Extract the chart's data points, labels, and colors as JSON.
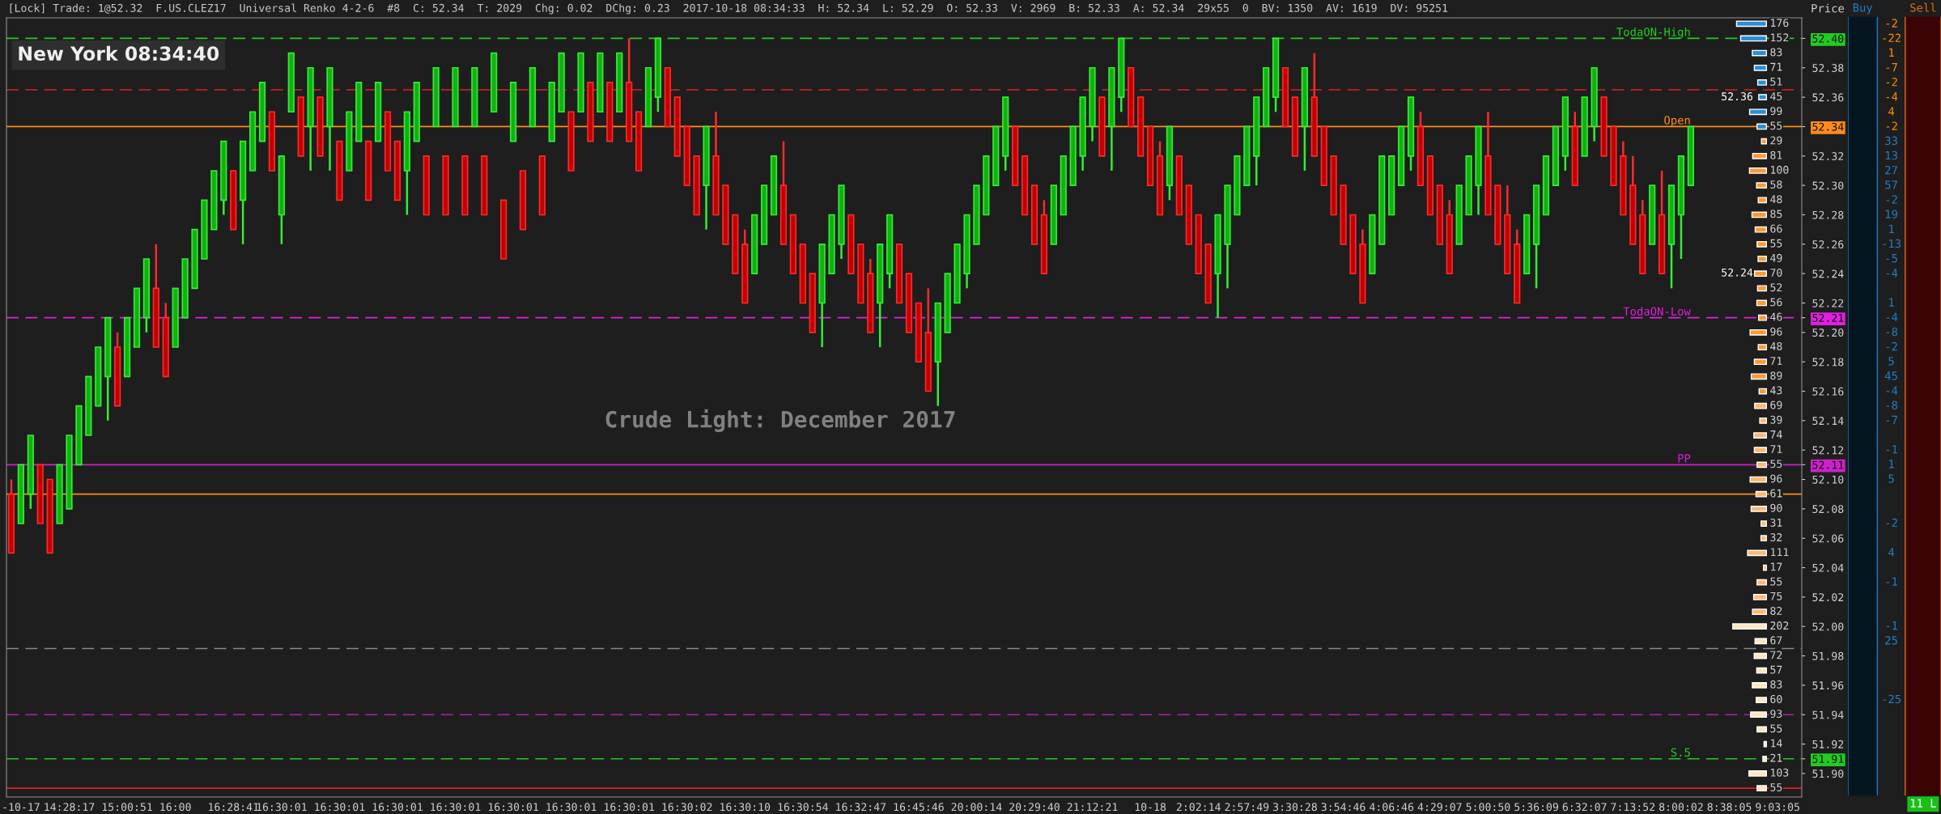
{
  "chart_data": [
    {
      "type": "candlestick",
      "title": "[Lock] Trade: 1@52.32  F.US.CLEZ17  Universal Renko 4-2-6  #8  C: 52.34  T: 2029  Chg: 0.02  DChg: 0.23  2017-10-18 08:34:33  H: 52.34  L: 52.29  O: 52.33  V: 2969  B: 52.33  A: 52.34  29x55  0  BV: 1350  AV: 1619  DV: 95251",
      "ylabel": "Price",
      "categories": [
        null,
        "-10-17",
        null,
        null,
        null,
        null,
        "14:28:17",
        null,
        null,
        null,
        null,
        null,
        "15:00:51",
        null,
        null,
        null,
        null,
        "16:00",
        null,
        null,
        null,
        null,
        null,
        "16:28:41",
        null,
        null,
        null,
        null,
        "16:30:01",
        null,
        null,
        null,
        null,
        null,
        "16:30:01",
        null,
        null,
        null,
        null,
        null,
        "16:30:01",
        null,
        null,
        null,
        null,
        null,
        "16:30:01",
        null,
        null,
        null,
        null,
        null,
        "16:30:01",
        null,
        null,
        null,
        null,
        null,
        "16:30:01",
        null,
        null,
        null,
        null,
        null,
        "16:30:01",
        null,
        null,
        null,
        null,
        null,
        "16:30:02",
        null,
        null,
        null,
        null,
        null,
        "16:30:10",
        null,
        null,
        null,
        null,
        null,
        "16:30:54",
        null,
        null,
        null,
        null,
        null,
        "16:32:47",
        null,
        null,
        null,
        null,
        null,
        "16:45:46",
        null,
        null,
        null,
        null,
        null,
        "20:00:14",
        null,
        null,
        null,
        null,
        null,
        "20:29:40",
        null,
        null,
        null,
        null,
        null,
        "21:12:21",
        null,
        null,
        null,
        null,
        null,
        "10-18",
        null,
        null,
        null,
        null,
        "2:02:14",
        null,
        null,
        null,
        null,
        "2:57:49",
        null,
        null,
        null,
        null,
        "3:30:28",
        null,
        null,
        null,
        null,
        "3:54:46",
        null,
        null,
        null,
        null,
        "4:06:46",
        null,
        null,
        null,
        null,
        "4:29:07",
        null,
        null,
        null,
        null,
        "5:00:50",
        null,
        null,
        null,
        null,
        "5:36:09",
        null,
        null,
        null,
        null,
        "6:32:07",
        null,
        null,
        null,
        null,
        "7:13:52",
        null,
        null,
        null,
        null,
        "8:00:02",
        null,
        null,
        null,
        null,
        "8:38:05",
        null,
        null,
        null,
        null,
        "9:03:05",
        null,
        null
      ],
      "ohlc": [
        [
          52.09,
          52.1,
          52.05,
          52.05
        ],
        [
          52.07,
          52.11,
          52.07,
          52.11
        ],
        [
          52.09,
          52.13,
          52.08,
          52.13
        ],
        [
          52.11,
          52.11,
          52.07,
          52.07
        ],
        [
          52.1,
          52.1,
          52.05,
          52.05
        ],
        [
          52.07,
          52.11,
          52.07,
          52.11
        ],
        [
          52.08,
          52.13,
          52.08,
          52.13
        ],
        [
          52.11,
          52.15,
          52.11,
          52.15
        ],
        [
          52.13,
          52.17,
          52.13,
          52.17
        ],
        [
          52.15,
          52.19,
          52.15,
          52.19
        ],
        [
          52.17,
          52.21,
          52.14,
          52.21
        ],
        [
          52.19,
          52.2,
          52.15,
          52.15
        ],
        [
          52.17,
          52.21,
          52.17,
          52.21
        ],
        [
          52.19,
          52.23,
          52.19,
          52.23
        ],
        [
          52.21,
          52.25,
          52.2,
          52.25
        ],
        [
          52.23,
          52.26,
          52.19,
          52.19
        ],
        [
          52.21,
          52.22,
          52.17,
          52.17
        ],
        [
          52.19,
          52.23,
          52.19,
          52.23
        ],
        [
          52.21,
          52.25,
          52.21,
          52.25
        ],
        [
          52.23,
          52.27,
          52.23,
          52.27
        ],
        [
          52.25,
          52.29,
          52.25,
          52.29
        ],
        [
          52.27,
          52.31,
          52.27,
          52.31
        ],
        [
          52.29,
          52.33,
          52.28,
          52.33
        ],
        [
          52.31,
          52.31,
          52.27,
          52.27
        ],
        [
          52.29,
          52.33,
          52.26,
          52.33
        ],
        [
          52.31,
          52.35,
          52.31,
          52.35
        ],
        [
          52.33,
          52.37,
          52.33,
          52.37
        ],
        [
          52.35,
          52.35,
          52.31,
          52.31
        ],
        [
          52.28,
          52.32,
          52.26,
          52.32
        ],
        [
          52.35,
          52.39,
          52.35,
          52.39
        ],
        [
          52.36,
          52.36,
          52.32,
          52.32
        ],
        [
          52.34,
          52.38,
          52.31,
          52.38
        ],
        [
          52.36,
          52.36,
          52.32,
          52.32
        ],
        [
          52.34,
          52.38,
          52.31,
          52.38
        ],
        [
          52.33,
          52.33,
          52.29,
          52.29
        ],
        [
          52.31,
          52.35,
          52.31,
          52.35
        ],
        [
          52.33,
          52.37,
          52.33,
          52.37
        ],
        [
          52.33,
          52.33,
          52.29,
          52.29
        ],
        [
          52.33,
          52.37,
          52.33,
          52.37
        ],
        [
          52.35,
          52.35,
          52.31,
          52.31
        ],
        [
          52.33,
          52.33,
          52.29,
          52.29
        ],
        [
          52.31,
          52.35,
          52.28,
          52.35
        ],
        [
          52.33,
          52.37,
          52.33,
          52.37
        ],
        [
          52.32,
          52.32,
          52.28,
          52.28
        ],
        [
          52.34,
          52.38,
          52.34,
          52.38
        ],
        [
          52.32,
          52.32,
          52.28,
          52.28
        ],
        [
          52.34,
          52.38,
          52.34,
          52.38
        ],
        [
          52.32,
          52.32,
          52.28,
          52.28
        ],
        [
          52.34,
          52.38,
          52.34,
          52.38
        ],
        [
          52.32,
          52.32,
          52.28,
          52.28
        ],
        [
          52.35,
          52.39,
          52.35,
          52.39
        ],
        [
          52.29,
          52.29,
          52.25,
          52.25
        ],
        [
          52.33,
          52.37,
          52.33,
          52.37
        ],
        [
          52.31,
          52.31,
          52.27,
          52.27
        ],
        [
          52.34,
          52.38,
          52.34,
          52.38
        ],
        [
          52.32,
          52.32,
          52.28,
          52.28
        ],
        [
          52.33,
          52.37,
          52.33,
          52.37
        ],
        [
          52.35,
          52.39,
          52.35,
          52.39
        ],
        [
          52.35,
          52.35,
          52.31,
          52.31
        ],
        [
          52.35,
          52.39,
          52.35,
          52.39
        ],
        [
          52.37,
          52.37,
          52.33,
          52.33
        ],
        [
          52.35,
          52.39,
          52.35,
          52.39
        ],
        [
          52.37,
          52.37,
          52.33,
          52.33
        ],
        [
          52.35,
          52.39,
          52.35,
          52.39
        ],
        [
          52.37,
          52.4,
          52.33,
          52.33
        ],
        [
          52.35,
          52.35,
          52.31,
          52.31
        ],
        [
          52.34,
          52.38,
          52.34,
          52.38
        ],
        [
          52.36,
          52.4,
          52.35,
          52.4
        ],
        [
          52.38,
          52.38,
          52.34,
          52.34
        ],
        [
          52.36,
          52.36,
          52.32,
          52.32
        ],
        [
          52.34,
          52.34,
          52.3,
          52.3
        ],
        [
          52.32,
          52.32,
          52.28,
          52.28
        ],
        [
          52.3,
          52.34,
          52.27,
          52.34
        ],
        [
          52.32,
          52.35,
          52.28,
          52.28
        ],
        [
          52.3,
          52.3,
          52.26,
          52.26
        ],
        [
          52.28,
          52.28,
          52.24,
          52.24
        ],
        [
          52.26,
          52.27,
          52.22,
          52.22
        ],
        [
          52.24,
          52.28,
          52.24,
          52.28
        ],
        [
          52.26,
          52.3,
          52.26,
          52.3
        ],
        [
          52.28,
          52.32,
          52.28,
          52.32
        ],
        [
          52.3,
          52.33,
          52.26,
          52.26
        ],
        [
          52.28,
          52.28,
          52.24,
          52.24
        ],
        [
          52.26,
          52.26,
          52.22,
          52.22
        ],
        [
          52.24,
          52.24,
          52.2,
          52.2
        ],
        [
          52.22,
          52.26,
          52.19,
          52.26
        ],
        [
          52.24,
          52.28,
          52.24,
          52.28
        ],
        [
          52.26,
          52.3,
          52.25,
          52.3
        ],
        [
          52.28,
          52.28,
          52.24,
          52.24
        ],
        [
          52.26,
          52.26,
          52.22,
          52.22
        ],
        [
          52.24,
          52.25,
          52.2,
          52.2
        ],
        [
          52.22,
          52.26,
          52.19,
          52.26
        ],
        [
          52.24,
          52.28,
          52.23,
          52.28
        ],
        [
          52.26,
          52.26,
          52.22,
          52.22
        ],
        [
          52.24,
          52.24,
          52.2,
          52.2
        ],
        [
          52.22,
          52.22,
          52.18,
          52.18
        ],
        [
          52.2,
          52.23,
          52.16,
          52.16
        ],
        [
          52.18,
          52.22,
          52.15,
          52.22
        ],
        [
          52.2,
          52.24,
          52.2,
          52.24
        ],
        [
          52.22,
          52.26,
          52.22,
          52.26
        ],
        [
          52.24,
          52.28,
          52.23,
          52.28
        ],
        [
          52.26,
          52.3,
          52.26,
          52.3
        ],
        [
          52.28,
          52.32,
          52.28,
          52.32
        ],
        [
          52.3,
          52.34,
          52.3,
          52.34
        ],
        [
          52.32,
          52.36,
          52.31,
          52.36
        ],
        [
          52.34,
          52.34,
          52.3,
          52.3
        ],
        [
          52.32,
          52.32,
          52.28,
          52.28
        ],
        [
          52.3,
          52.3,
          52.26,
          52.26
        ],
        [
          52.28,
          52.29,
          52.24,
          52.24
        ],
        [
          52.26,
          52.3,
          52.26,
          52.3
        ],
        [
          52.28,
          52.32,
          52.28,
          52.32
        ],
        [
          52.3,
          52.34,
          52.3,
          52.34
        ],
        [
          52.32,
          52.36,
          52.31,
          52.36
        ],
        [
          52.34,
          52.38,
          52.33,
          52.38
        ],
        [
          52.36,
          52.36,
          52.32,
          52.32
        ],
        [
          52.34,
          52.38,
          52.31,
          52.38
        ],
        [
          52.36,
          52.4,
          52.35,
          52.4
        ],
        [
          52.38,
          52.38,
          52.34,
          52.34
        ],
        [
          52.36,
          52.36,
          52.32,
          52.32
        ],
        [
          52.34,
          52.34,
          52.3,
          52.3
        ],
        [
          52.32,
          52.33,
          52.28,
          52.28
        ],
        [
          52.3,
          52.34,
          52.29,
          52.34
        ],
        [
          52.32,
          52.32,
          52.28,
          52.28
        ],
        [
          52.3,
          52.3,
          52.26,
          52.26
        ],
        [
          52.28,
          52.28,
          52.24,
          52.24
        ],
        [
          52.26,
          52.26,
          52.22,
          52.22
        ],
        [
          52.24,
          52.28,
          52.21,
          52.28
        ],
        [
          52.26,
          52.3,
          52.23,
          52.3
        ],
        [
          52.28,
          52.32,
          52.28,
          52.32
        ],
        [
          52.3,
          52.34,
          52.3,
          52.34
        ],
        [
          52.32,
          52.36,
          52.3,
          52.36
        ],
        [
          52.34,
          52.38,
          52.34,
          52.38
        ],
        [
          52.36,
          52.4,
          52.35,
          52.4
        ],
        [
          52.38,
          52.38,
          52.34,
          52.34
        ],
        [
          52.36,
          52.36,
          52.32,
          52.32
        ],
        [
          52.34,
          52.38,
          52.31,
          52.38
        ],
        [
          52.36,
          52.39,
          52.32,
          52.32
        ],
        [
          52.34,
          52.34,
          52.3,
          52.3
        ],
        [
          52.32,
          52.32,
          52.28,
          52.28
        ],
        [
          52.3,
          52.3,
          52.26,
          52.26
        ],
        [
          52.28,
          52.28,
          52.24,
          52.24
        ],
        [
          52.26,
          52.27,
          52.22,
          52.22
        ],
        [
          52.24,
          52.28,
          52.24,
          52.28
        ],
        [
          52.26,
          52.32,
          52.26,
          52.32
        ],
        [
          52.28,
          52.32,
          52.28,
          52.32
        ],
        [
          52.3,
          52.34,
          52.3,
          52.34
        ],
        [
          52.32,
          52.36,
          52.31,
          52.36
        ],
        [
          52.34,
          52.35,
          52.3,
          52.3
        ],
        [
          52.32,
          52.32,
          52.28,
          52.28
        ],
        [
          52.3,
          52.3,
          52.26,
          52.26
        ],
        [
          52.28,
          52.29,
          52.24,
          52.24
        ],
        [
          52.26,
          52.3,
          52.26,
          52.3
        ],
        [
          52.28,
          52.32,
          52.28,
          52.32
        ],
        [
          52.3,
          52.34,
          52.28,
          52.34
        ],
        [
          52.32,
          52.35,
          52.28,
          52.28
        ],
        [
          52.3,
          52.3,
          52.26,
          52.26
        ],
        [
          52.28,
          52.3,
          52.24,
          52.24
        ],
        [
          52.26,
          52.27,
          52.22,
          52.22
        ],
        [
          52.24,
          52.28,
          52.24,
          52.28
        ],
        [
          52.26,
          52.3,
          52.23,
          52.3
        ],
        [
          52.28,
          52.32,
          52.28,
          52.32
        ],
        [
          52.3,
          52.34,
          52.3,
          52.34
        ],
        [
          52.32,
          52.36,
          52.31,
          52.36
        ],
        [
          52.34,
          52.35,
          52.3,
          52.3
        ],
        [
          52.32,
          52.36,
          52.32,
          52.36
        ],
        [
          52.34,
          52.38,
          52.33,
          52.38
        ],
        [
          52.36,
          52.36,
          52.32,
          52.32
        ],
        [
          52.34,
          52.34,
          52.3,
          52.3
        ],
        [
          52.32,
          52.33,
          52.28,
          52.28
        ],
        [
          52.3,
          52.32,
          52.26,
          52.26
        ],
        [
          52.28,
          52.29,
          52.24,
          52.24
        ],
        [
          52.26,
          52.3,
          52.26,
          52.3
        ],
        [
          52.28,
          52.31,
          52.24,
          52.24
        ],
        [
          52.26,
          52.3,
          52.23,
          52.3
        ],
        [
          52.28,
          52.32,
          52.25,
          52.32
        ],
        [
          52.3,
          52.34,
          52.3,
          52.34
        ],
        null,
        null,
        null,
        null,
        null,
        null,
        null,
        null,
        null,
        null,
        null
      ],
      "ylim": [
        51.884,
        52.414
      ],
      "yticks": [
        {
          "value": 51.9,
          "label": "51.90"
        },
        51.91,
        51.92,
        51.94,
        51.96,
        51.98,
        {
          "value": 52.0,
          "label": "52.00"
        },
        52.02,
        52.04,
        52.06,
        52.08,
        {
          "value": 52.1,
          "label": "52.10"
        },
        52.11,
        52.12,
        52.14,
        52.16,
        52.18,
        {
          "value": 52.2,
          "label": "52.20"
        },
        52.21,
        52.22,
        52.24,
        52.26,
        52.28,
        {
          "value": 52.3,
          "label": "52.30"
        },
        52.32,
        52.34,
        52.36,
        52.38,
        {
          "value": 52.4,
          "label": "52.40"
        }
      ],
      "ref_lines": [
        {
          "axis": "y",
          "value": 52.4,
          "label": "TodaON-High",
          "color": "#22cc22",
          "line_style": "dashed"
        },
        {
          "axis": "y",
          "value": 52.34,
          "label": "Open",
          "color": "#ff8c1a",
          "line_style": "solid"
        },
        {
          "axis": "y",
          "value": 52.21,
          "label": "TodaON-Low",
          "color": "#e020e0",
          "line_style": "dashed"
        },
        {
          "axis": "y",
          "value": 52.11,
          "label": "PP",
          "color": "#cc22cc",
          "line_style": "solid"
        },
        {
          "axis": "y",
          "value": 51.91,
          "label": "S.5",
          "color": "#22cc22",
          "line_style": "dashed"
        },
        {
          "axis": "y",
          "value": 52.365,
          "color": "#dd2020",
          "line_style": "dashed"
        },
        {
          "axis": "y",
          "value": 52.09,
          "color": "#ff8c1a",
          "line_style": "solid"
        },
        {
          "axis": "y",
          "value": 51.985,
          "color": "#888888",
          "line_style": "dashed"
        },
        {
          "axis": "y",
          "value": 51.94,
          "color": "#aa22aa",
          "line_style": "dashed"
        },
        {
          "axis": "y",
          "value": 51.89,
          "color": "#dd2020",
          "line_style": "solid"
        }
      ],
      "annotations": [
        "New York 08:34:40",
        "Crude Light: December 2017",
        "52.36",
        "52.24"
      ]
    },
    {
      "type": "bar",
      "orientation": "horizontal",
      "tick_labels": false,
      "data_labels": true,
      "x": [
        52.41,
        52.4,
        52.39,
        52.38,
        52.37,
        52.36,
        52.35,
        52.34,
        52.33,
        52.32,
        52.31,
        52.3,
        52.29,
        52.28,
        52.27,
        52.26,
        52.25,
        52.24,
        52.23,
        52.22,
        52.21,
        52.2,
        52.19,
        52.18,
        52.17,
        52.16,
        52.15,
        52.14,
        52.13,
        52.12,
        52.11,
        52.1,
        52.09,
        52.08,
        52.07,
        52.06,
        52.05,
        52.04,
        52.03,
        52.02,
        52.01,
        52.0,
        51.99,
        51.98,
        51.97,
        51.96,
        51.95,
        51.94,
        51.93,
        51.92,
        51.91,
        51.9,
        51.89
      ],
      "values": [
        176,
        152,
        83,
        71,
        51,
        45,
        99,
        55,
        29,
        81,
        100,
        58,
        48,
        85,
        66,
        55,
        49,
        70,
        52,
        56,
        46,
        96,
        48,
        71,
        89,
        43,
        69,
        39,
        74,
        71,
        55,
        96,
        61,
        90,
        31,
        32,
        111,
        17,
        55,
        75,
        82,
        202,
        67,
        72,
        57,
        83,
        60,
        93,
        55,
        14,
        21,
        103,
        55
      ],
      "colors": [
        "#2a8fd6",
        "#2a8fd6",
        "#2a8fd6",
        "#2a8fd6",
        "#2a8fd6",
        "#2a8fd6",
        "#2a8fd6",
        "#2a8fd6",
        "#ff9933",
        "#ff9933",
        "#ff9933",
        "#ff9933",
        "#ff9933",
        "#ff9933",
        "#ff9933",
        "#ff9933",
        "#ff9933",
        "#ff9933",
        "#ff9933",
        "#ff9933",
        "#ff9933",
        "#ff9933",
        "#ff9933",
        "#ff9933",
        "#ff9933",
        "#ff9933",
        "#ffb870",
        "#ffb870",
        "#ffb870",
        "#ffb870",
        "#ffb870",
        "#ffb870",
        "#ffb870",
        "#ffb870",
        "#ffb870",
        "#ffb870",
        "#ffb870",
        "#ffb870",
        "#ffb870",
        "#ffb870",
        "#ffb870",
        "#ffe6c0",
        "#ffe6c0",
        "#ffe6c0",
        "#ffe6c0",
        "#ffe6c0",
        "#ffe6c0",
        "#ffe6c0",
        "#ffe6c0",
        "#ffe6c0",
        "#ffe6c0",
        "#ffe6c0",
        "#ffe6c0"
      ],
      "ylim": [
        51.884,
        52.414
      ]
    },
    {
      "type": "other",
      "value_labels": [
        "-2",
        "-22",
        "1",
        "-7",
        "-2",
        "-4",
        "4",
        "-2",
        "33",
        "13",
        "27",
        "57",
        "-2",
        "19",
        "1",
        "-13",
        "-5",
        "-4",
        null,
        "1",
        "-4",
        "-8",
        "-2",
        "5",
        "45",
        "-4",
        "-8",
        "-7",
        null,
        "-1",
        "1",
        "5",
        null,
        null,
        "-2",
        null,
        "4",
        null,
        "-1",
        null,
        null,
        "-1",
        "25",
        null,
        null,
        null,
        "-25",
        null,
        null,
        null,
        null,
        null,
        null
      ],
      "categories": [
        null,
        null,
        null,
        null,
        null,
        null,
        null,
        null,
        null,
        null,
        null,
        null,
        null,
        null,
        null,
        null,
        null,
        null,
        null,
        null,
        null,
        null,
        null,
        null,
        null,
        null,
        null,
        null,
        null,
        null,
        null,
        null,
        null,
        null,
        null,
        null,
        null,
        null,
        null,
        null,
        null,
        null,
        null,
        null,
        null,
        null,
        null,
        null,
        null,
        null,
        null,
        null,
        null
      ],
      "annotations": [
        "Buy",
        "Sell",
        "11 L"
      ]
    }
  ]
}
